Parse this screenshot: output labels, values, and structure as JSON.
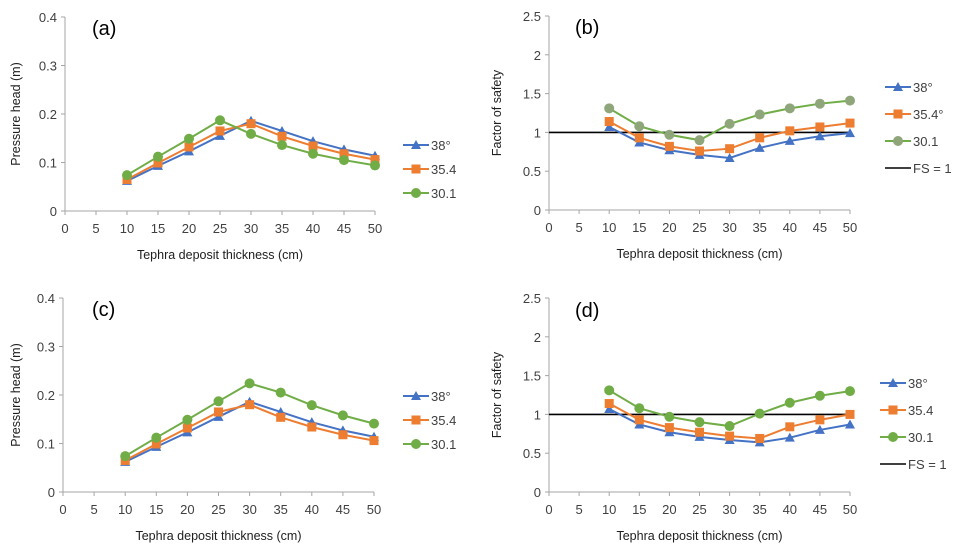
{
  "chart_data": [
    {
      "type": "line",
      "panel_label": "(a)",
      "xlabel": "Tephra deposit thickness (cm)",
      "ylabel": "Pressure head (m)",
      "xlim": [
        0,
        50
      ],
      "ylim": [
        0,
        0.4
      ],
      "xticks": [
        "0",
        "5",
        "10",
        "15",
        "20",
        "25",
        "30",
        "35",
        "40",
        "45",
        "50"
      ],
      "yticks": [
        "0",
        "0.1",
        "0.2",
        "0.3",
        "0.4"
      ],
      "x": [
        10,
        15,
        20,
        25,
        30,
        35,
        40,
        45,
        50
      ],
      "legend_position": "right",
      "series": [
        {
          "name": "38°",
          "marker": "triangle",
          "color": "#4472C4",
          "values": [
            0.062,
            0.093,
            0.123,
            0.155,
            0.186,
            0.165,
            0.144,
            0.127,
            0.114
          ]
        },
        {
          "name": "35.4",
          "marker": "square",
          "color": "#ED7D31",
          "values": [
            0.065,
            0.099,
            0.132,
            0.165,
            0.18,
            0.154,
            0.134,
            0.118,
            0.106
          ]
        },
        {
          "name": "30.1",
          "marker": "circle",
          "color": "#70AD47",
          "values": [
            0.074,
            0.112,
            0.149,
            0.187,
            0.159,
            0.136,
            0.118,
            0.105,
            0.094
          ]
        }
      ]
    },
    {
      "type": "line",
      "panel_label": "(b)",
      "xlabel": "Tephra deposit thickness (cm)",
      "ylabel": "Factor of safety",
      "xlim": [
        0,
        50
      ],
      "ylim": [
        0,
        2.5
      ],
      "xticks": [
        "0",
        "5",
        "10",
        "15",
        "20",
        "25",
        "30",
        "35",
        "40",
        "45",
        "50"
      ],
      "yticks": [
        "0",
        "0.5",
        "1",
        "1.5",
        "2",
        "2.5"
      ],
      "x": [
        10,
        15,
        20,
        25,
        30,
        35,
        40,
        45,
        50
      ],
      "legend_position": "right",
      "reference_line": {
        "name": "FS = 1",
        "value": 1,
        "color": "#000000"
      },
      "series": [
        {
          "name": "38°",
          "marker": "triangle",
          "color": "#4472C4",
          "values": [
            1.07,
            0.87,
            0.77,
            0.71,
            0.67,
            0.8,
            0.89,
            0.95,
            0.99
          ]
        },
        {
          "name": "35.4°",
          "marker": "square",
          "color": "#ED7D31",
          "values": [
            1.14,
            0.93,
            0.82,
            0.76,
            0.79,
            0.93,
            1.02,
            1.07,
            1.12
          ]
        },
        {
          "name": "30.1",
          "marker": "circle",
          "color": "#70AD47",
          "marker_color": "#8FA67A",
          "values": [
            1.31,
            1.08,
            0.97,
            0.9,
            1.11,
            1.23,
            1.31,
            1.37,
            1.41
          ]
        }
      ]
    },
    {
      "type": "line",
      "panel_label": "(c)",
      "xlabel": "Tephra deposit thickness (cm)",
      "ylabel": "Pressure head (m)",
      "xlim": [
        0,
        50
      ],
      "ylim": [
        0,
        0.4
      ],
      "xticks": [
        "0",
        "5",
        "10",
        "15",
        "20",
        "25",
        "30",
        "35",
        "40",
        "45",
        "50"
      ],
      "yticks": [
        "0",
        "0.1",
        "0.2",
        "0.3",
        "0.4"
      ],
      "x": [
        10,
        15,
        20,
        25,
        30,
        35,
        40,
        45,
        50
      ],
      "legend_position": "right",
      "series": [
        {
          "name": "38°",
          "marker": "triangle",
          "color": "#4472C4",
          "values": [
            0.062,
            0.093,
            0.123,
            0.155,
            0.186,
            0.165,
            0.144,
            0.127,
            0.114
          ]
        },
        {
          "name": "35.4",
          "marker": "square",
          "color": "#ED7D31",
          "values": [
            0.065,
            0.099,
            0.132,
            0.165,
            0.18,
            0.154,
            0.134,
            0.118,
            0.106
          ]
        },
        {
          "name": "30.1",
          "marker": "circle",
          "color": "#70AD47",
          "values": [
            0.074,
            0.112,
            0.149,
            0.187,
            0.224,
            0.205,
            0.179,
            0.158,
            0.141
          ]
        }
      ]
    },
    {
      "type": "line",
      "panel_label": "(d)",
      "xlabel": "Tephra deposit thickness (cm)",
      "ylabel": "Factor of safety",
      "xlim": [
        0,
        50
      ],
      "ylim": [
        0,
        2.5
      ],
      "xticks": [
        "0",
        "5",
        "10",
        "15",
        "20",
        "25",
        "30",
        "35",
        "40",
        "45",
        "50"
      ],
      "yticks": [
        "0",
        "0.5",
        "1",
        "1.5",
        "2",
        "2.5"
      ],
      "x": [
        10,
        15,
        20,
        25,
        30,
        35,
        40,
        45,
        50
      ],
      "legend_position": "right",
      "reference_line": {
        "name": "FS = 1",
        "value": 1,
        "color": "#000000"
      },
      "series": [
        {
          "name": "38°",
          "marker": "triangle",
          "color": "#4472C4",
          "values": [
            1.07,
            0.87,
            0.77,
            0.71,
            0.67,
            0.64,
            0.7,
            0.8,
            0.87
          ]
        },
        {
          "name": "35.4",
          "marker": "square",
          "color": "#ED7D31",
          "values": [
            1.14,
            0.93,
            0.83,
            0.77,
            0.72,
            0.69,
            0.84,
            0.93,
            1.0
          ]
        },
        {
          "name": "30.1",
          "marker": "circle",
          "color": "#70AD47",
          "values": [
            1.31,
            1.08,
            0.97,
            0.9,
            0.85,
            1.01,
            1.15,
            1.24,
            1.3
          ]
        }
      ]
    }
  ]
}
